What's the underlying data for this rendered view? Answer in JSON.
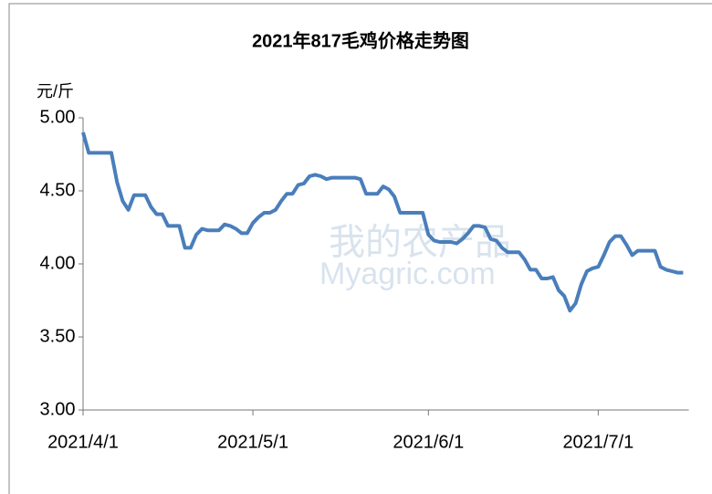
{
  "chart_data": {
    "type": "line",
    "title": "2021年817毛鸡价格走势图",
    "y_label": "元/斤",
    "watermark": [
      "我的农产品",
      "Myagric.com"
    ],
    "xlim": [
      0,
      107
    ],
    "xticks": [
      {
        "value": 0,
        "label": "2021/4/1"
      },
      {
        "value": 30,
        "label": "2021/5/1"
      },
      {
        "value": 61,
        "label": "2021/6/1"
      },
      {
        "value": 91,
        "label": "2021/7/1"
      }
    ],
    "ylim": [
      3,
      5
    ],
    "yticks": [
      {
        "value": 3,
        "label": "3.00"
      },
      {
        "value": 3.5,
        "label": "3.50"
      },
      {
        "value": 4,
        "label": "4.00"
      },
      {
        "value": 4.5,
        "label": "4.50"
      },
      {
        "value": 5,
        "label": "5.00"
      }
    ],
    "grid": false,
    "series": [
      {
        "name": "817毛鸡",
        "color": "#4a7ebb",
        "x": [
          0,
          1,
          2,
          3,
          4,
          5,
          6,
          7,
          8,
          9,
          10,
          11,
          12,
          13,
          14,
          15,
          16,
          17,
          18,
          19,
          20,
          21,
          22,
          23,
          24,
          25,
          26,
          27,
          28,
          29,
          30,
          31,
          32,
          33,
          34,
          35,
          36,
          37,
          38,
          39,
          40,
          41,
          42,
          43,
          44,
          45,
          46,
          47,
          48,
          49,
          50,
          51,
          52,
          53,
          54,
          55,
          56,
          57,
          58,
          59,
          60,
          61,
          62,
          63,
          64,
          65,
          66,
          67,
          68,
          69,
          70,
          71,
          72,
          73,
          74,
          75,
          76,
          77,
          78,
          79,
          80,
          81,
          82,
          83,
          84,
          85,
          86,
          87,
          88,
          89,
          90,
          91,
          92,
          93,
          94,
          95,
          96,
          97,
          98,
          99,
          100,
          101,
          102,
          103,
          104,
          105,
          106
        ],
        "values": [
          4.9,
          4.76,
          4.76,
          4.76,
          4.76,
          4.76,
          4.56,
          4.43,
          4.37,
          4.47,
          4.47,
          4.47,
          4.39,
          4.34,
          4.34,
          4.26,
          4.26,
          4.26,
          4.11,
          4.11,
          4.2,
          4.24,
          4.23,
          4.23,
          4.23,
          4.27,
          4.26,
          4.24,
          4.21,
          4.21,
          4.28,
          4.32,
          4.35,
          4.35,
          4.37,
          4.43,
          4.48,
          4.48,
          4.54,
          4.55,
          4.6,
          4.61,
          4.6,
          4.58,
          4.59,
          4.59,
          4.59,
          4.59,
          4.59,
          4.58,
          4.48,
          4.48,
          4.48,
          4.53,
          4.51,
          4.46,
          4.35,
          4.35,
          4.35,
          4.35,
          4.35,
          4.2,
          4.16,
          4.15,
          4.15,
          4.15,
          4.14,
          4.17,
          4.21,
          4.26,
          4.26,
          4.25,
          4.17,
          4.16,
          4.11,
          4.08,
          4.08,
          4.08,
          4.03,
          3.96,
          3.96,
          3.9,
          3.9,
          3.91,
          3.82,
          3.78,
          3.68,
          3.73,
          3.86,
          3.95,
          3.97,
          3.98,
          4.06,
          4.15,
          4.19,
          4.19,
          4.13,
          4.06,
          4.09,
          4.09,
          4.09,
          4.09,
          3.98,
          3.96,
          3.95,
          3.94,
          3.94
        ]
      }
    ]
  }
}
